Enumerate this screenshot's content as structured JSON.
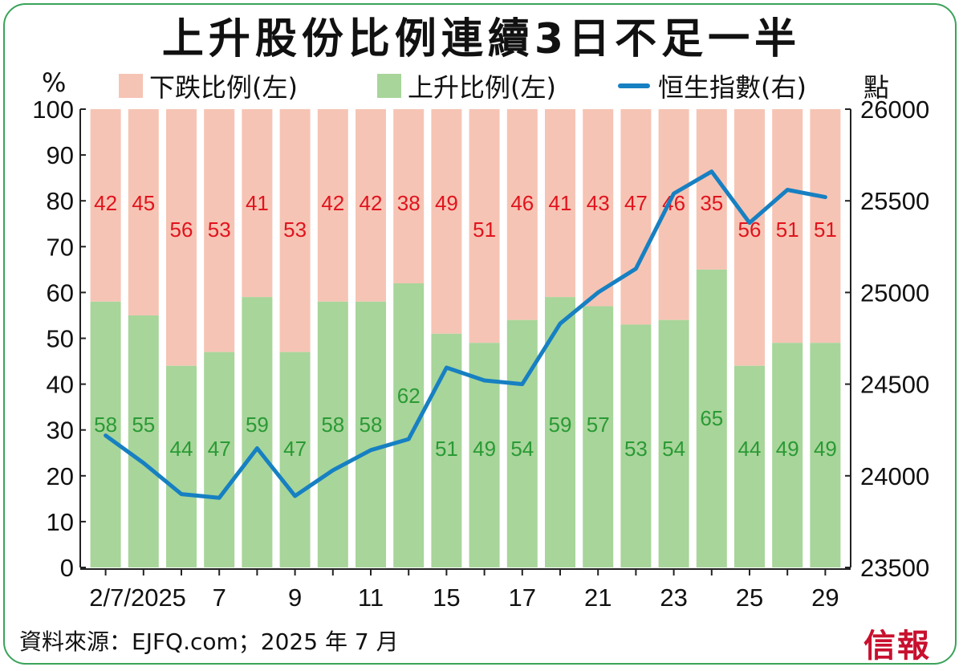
{
  "title": "上升股份比例連續3日不足一半",
  "legend": {
    "decline": "下跌比例(左)",
    "advance": "上升比例(左)",
    "index": "恒生指數(右)"
  },
  "units": {
    "left": "%",
    "right": "點"
  },
  "source": "資料來源：EJFQ.com；2025 年 7 月",
  "brand": "信報",
  "colors": {
    "decline_bar": "#f6c4b4",
    "advance_bar": "#a8d59a",
    "index_line": "#1780c2",
    "decline_label": "#e0141e",
    "advance_label": "#2a9a35",
    "frame": "#3aa35a"
  },
  "chart_data": {
    "type": "bar",
    "stacked": true,
    "x_tick_labels": [
      "2/7/2025",
      "7",
      "9",
      "11",
      "15",
      "17",
      "21",
      "23",
      "25",
      "29"
    ],
    "x_tick_positions": [
      0,
      3,
      5,
      7,
      9,
      11,
      13,
      15,
      17,
      19
    ],
    "series": [
      {
        "name": "上升比例(左)",
        "axis": "left",
        "values": [
          58,
          55,
          44,
          47,
          59,
          47,
          58,
          58,
          62,
          51,
          49,
          54,
          59,
          57,
          53,
          54,
          65,
          44,
          49,
          49
        ]
      },
      {
        "name": "下跌比例(左)",
        "axis": "left",
        "values": [
          42,
          45,
          56,
          53,
          41,
          53,
          42,
          42,
          38,
          49,
          51,
          46,
          41,
          43,
          47,
          46,
          35,
          56,
          51,
          51
        ]
      },
      {
        "name": "恒生指數(右)",
        "axis": "right",
        "type": "line",
        "values": [
          24220,
          24070,
          23900,
          23880,
          24150,
          23890,
          24030,
          24140,
          24200,
          24590,
          24520,
          24500,
          24830,
          25000,
          25130,
          25540,
          25660,
          25380,
          25560,
          25520
        ]
      }
    ],
    "left_axis": {
      "ylim": [
        0,
        100
      ],
      "ticks": [
        0,
        10,
        20,
        30,
        40,
        50,
        60,
        70,
        80,
        90,
        100
      ]
    },
    "right_axis": {
      "ylim": [
        23500,
        26000
      ],
      "ticks": [
        23500,
        24000,
        24500,
        25000,
        25500,
        26000
      ]
    },
    "legend_position": "top",
    "grid": false
  }
}
